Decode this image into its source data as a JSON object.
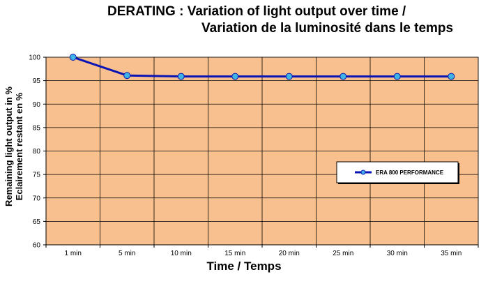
{
  "title_line1": "DERATING : Variation of light output over time /",
  "title_line2": "Variation de la luminosité dans le temps",
  "ylabel_line1": "Remaining light output in %",
  "ylabel_line2": "Eclairement restant en %",
  "xlabel": "Time / Temps",
  "colors": {
    "plot_bg": "#f8c08f",
    "line": "#0a14b4",
    "marker": "#3fb3e6",
    "grid": "#000000"
  },
  "chart_data": {
    "type": "line",
    "categories": [
      "1 min",
      "5 min",
      "10 min",
      "15 min",
      "20 min",
      "25 min",
      "30 min",
      "35 min"
    ],
    "series": [
      {
        "name": "ERA 800 PERFORMANCE",
        "values": [
          100,
          96.1,
          95.9,
          95.9,
          95.9,
          95.9,
          95.9,
          95.9
        ]
      }
    ],
    "ylim": [
      60,
      100
    ],
    "yticks": [
      60,
      65,
      70,
      75,
      80,
      85,
      90,
      95,
      100
    ],
    "grid": "horizontal",
    "legend_position": "right"
  }
}
